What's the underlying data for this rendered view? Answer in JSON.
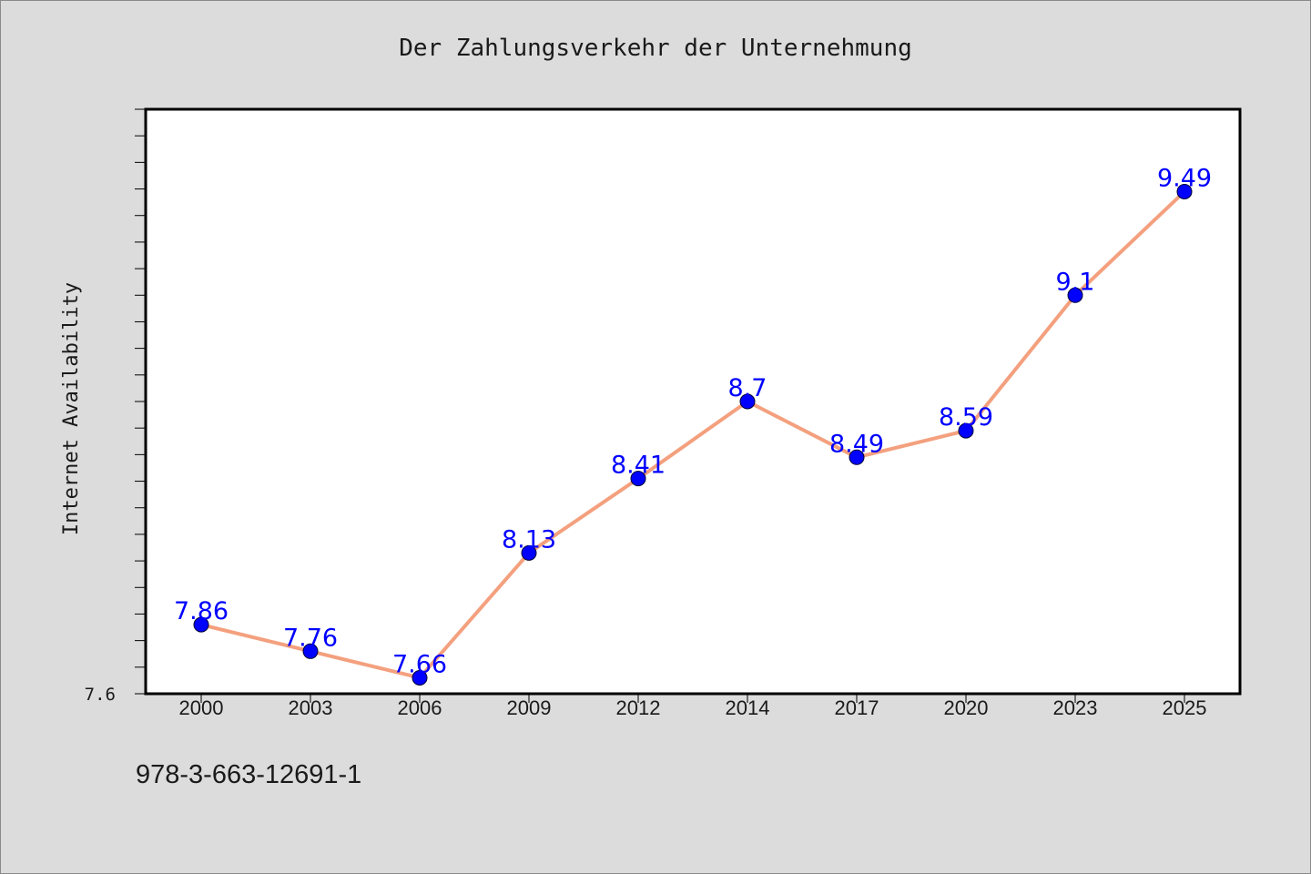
{
  "chart_data": {
    "type": "line",
    "title": "Der Zahlungsverkehr der Unternehmung",
    "xlabel": "",
    "ylabel": "Internet Availability",
    "categories": [
      "2000",
      "2003",
      "2006",
      "2009",
      "2012",
      "2014",
      "2017",
      "2020",
      "2023",
      "2025"
    ],
    "series": [
      {
        "values": [
          7.86,
          7.76,
          7.66,
          8.13,
          8.41,
          8.7,
          8.49,
          8.59,
          9.1,
          9.49
        ],
        "labels": [
          "7.86",
          "7.76",
          "7.66",
          "8.13",
          "8.41",
          "8.7",
          "8.49",
          "8.59",
          "9.1",
          "9.49"
        ],
        "line_color": "#f4a07e",
        "marker_color": "#0000ff"
      }
    ],
    "ylim": [
      7.6,
      9.8
    ],
    "y_tick_labels": [
      "7.6"
    ],
    "grid": false,
    "legend": "none"
  },
  "footnote": "978-3-663-12691-1",
  "colors": {
    "background": "#dcdcdc",
    "plot_background": "#ffffff",
    "line": "#f4a07e",
    "marker": "#0000ff",
    "data_label": "#0000ff"
  }
}
